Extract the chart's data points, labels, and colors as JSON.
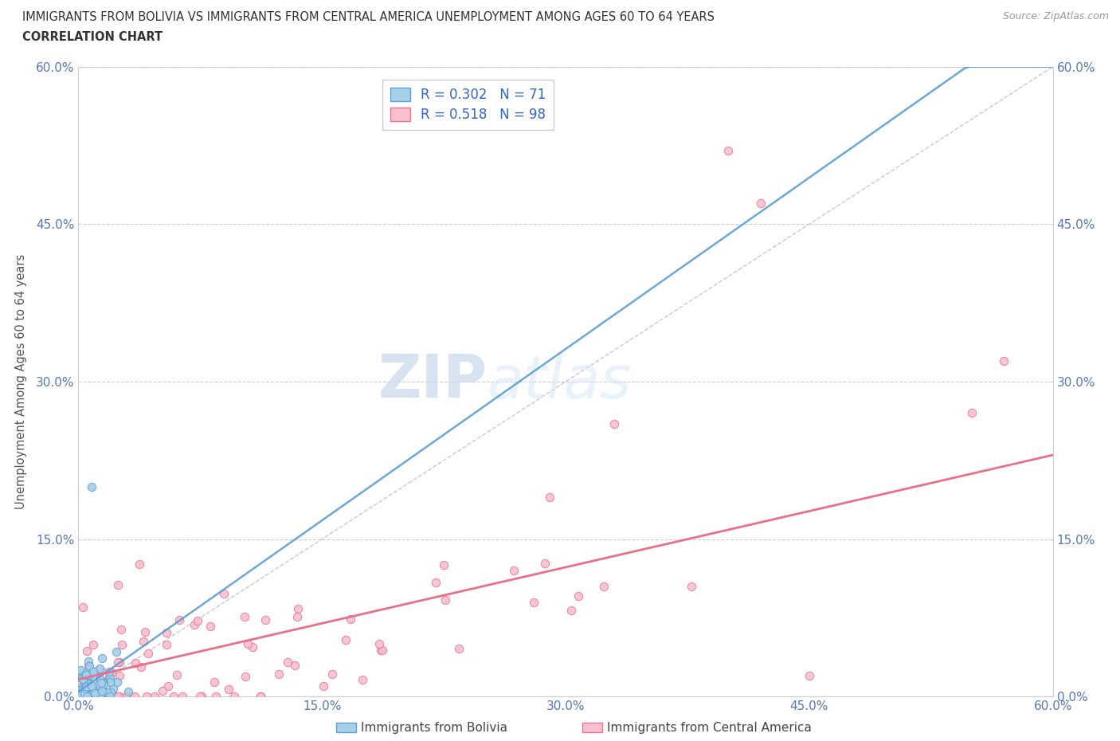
{
  "title_line1": "IMMIGRANTS FROM BOLIVIA VS IMMIGRANTS FROM CENTRAL AMERICA UNEMPLOYMENT AMONG AGES 60 TO 64 YEARS",
  "title_line2": "CORRELATION CHART",
  "source": "Source: ZipAtlas.com",
  "xlim": [
    0,
    0.6
  ],
  "ylim": [
    0,
    0.6
  ],
  "bolivia_color": "#a8cfe8",
  "bolivia_edge": "#5b9fd4",
  "central_america_color": "#f9c0d0",
  "central_america_edge": "#f07090",
  "bolivia_R": 0.302,
  "bolivia_N": 71,
  "central_america_R": 0.518,
  "central_america_N": 98,
  "diagonal_color": "#bbbbcc",
  "regression_color_ca": "#e8708a",
  "regression_color_bolivia": "#5b9fd4",
  "watermark_zip": "ZIP",
  "watermark_atlas": "atlas",
  "ylabel": "Unemployment Among Ages 60 to 64 years",
  "grid_color": "#ccccdd",
  "tick_color": "#5577bb",
  "legend_text_color": "#3366cc",
  "bottom_label_bolivia": "Immigrants from Bolivia",
  "bottom_label_ca": "Immigrants from Central America"
}
